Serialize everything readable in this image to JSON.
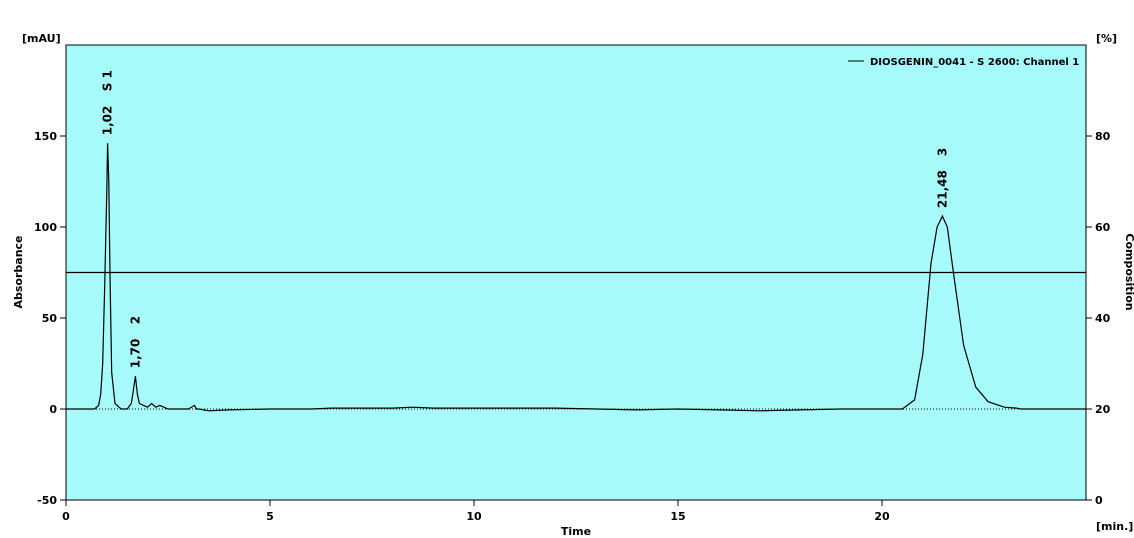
{
  "chart_data": {
    "type": "line",
    "xlabel": "Time",
    "x_unit": "[min.]",
    "ylabel": "Absorbance",
    "y_unit": "[mAU]",
    "y2label": "Composition",
    "y2_unit": "[%]",
    "xlim": [
      0,
      25
    ],
    "ylim": [
      -50,
      200
    ],
    "y2lim": [
      0,
      100
    ],
    "xticks": [
      0,
      5,
      10,
      15,
      20
    ],
    "yticks": [
      -50,
      0,
      50,
      100,
      150
    ],
    "y2ticks": [
      0,
      20,
      40,
      60,
      80
    ],
    "legend_position": "top-right",
    "plot_background": "#a6fafa",
    "line_color": "#000000",
    "grid": false,
    "series": [
      {
        "name": "DIOSGENIN_0041 - S 2600: Channel 1",
        "x": [
          0.0,
          0.7,
          0.8,
          0.85,
          0.9,
          0.95,
          1.0,
          1.02,
          1.05,
          1.08,
          1.12,
          1.2,
          1.35,
          1.5,
          1.6,
          1.65,
          1.7,
          1.75,
          1.8,
          1.9,
          2.0,
          2.1,
          2.2,
          2.3,
          2.4,
          2.5,
          2.7,
          3.0,
          3.15,
          3.2,
          3.25,
          3.5,
          4.0,
          5.0,
          6.0,
          6.5,
          7.0,
          8.0,
          8.5,
          9.0,
          10.0,
          11.0,
          12.0,
          13.0,
          14.0,
          15.0,
          16.0,
          17.0,
          18.0,
          19.0,
          20.0,
          20.5,
          20.8,
          21.0,
          21.2,
          21.35,
          21.48,
          21.6,
          21.75,
          22.0,
          22.3,
          22.6,
          23.0,
          23.3,
          23.4,
          23.6,
          24.0,
          25.0
        ],
        "y": [
          0,
          0,
          2,
          8,
          25,
          70,
          120,
          146,
          125,
          70,
          20,
          3,
          0,
          0,
          3,
          10,
          18,
          8,
          3,
          2,
          1,
          3,
          1,
          2,
          1,
          0,
          0,
          0,
          2,
          0,
          0,
          -1,
          -0.5,
          0,
          0,
          0.5,
          0.5,
          0.5,
          1,
          0.5,
          0.5,
          0.5,
          0.5,
          0,
          -0.5,
          0,
          -0.5,
          -1,
          -0.5,
          0,
          0,
          0,
          5,
          30,
          80,
          100,
          106,
          100,
          75,
          35,
          12,
          4,
          1,
          0.5,
          0,
          0,
          0,
          0
        ]
      },
      {
        "name": "Composition",
        "axis": "right",
        "x": [
          0,
          25
        ],
        "y": [
          50,
          50
        ]
      }
    ],
    "peaks": [
      {
        "time": 1.02,
        "height": 146,
        "label": "1,02",
        "id": "S 1"
      },
      {
        "time": 1.7,
        "height": 18,
        "label": "1,70",
        "id": "2"
      },
      {
        "time": 21.48,
        "height": 106,
        "label": "21,48",
        "id": "3"
      }
    ]
  }
}
